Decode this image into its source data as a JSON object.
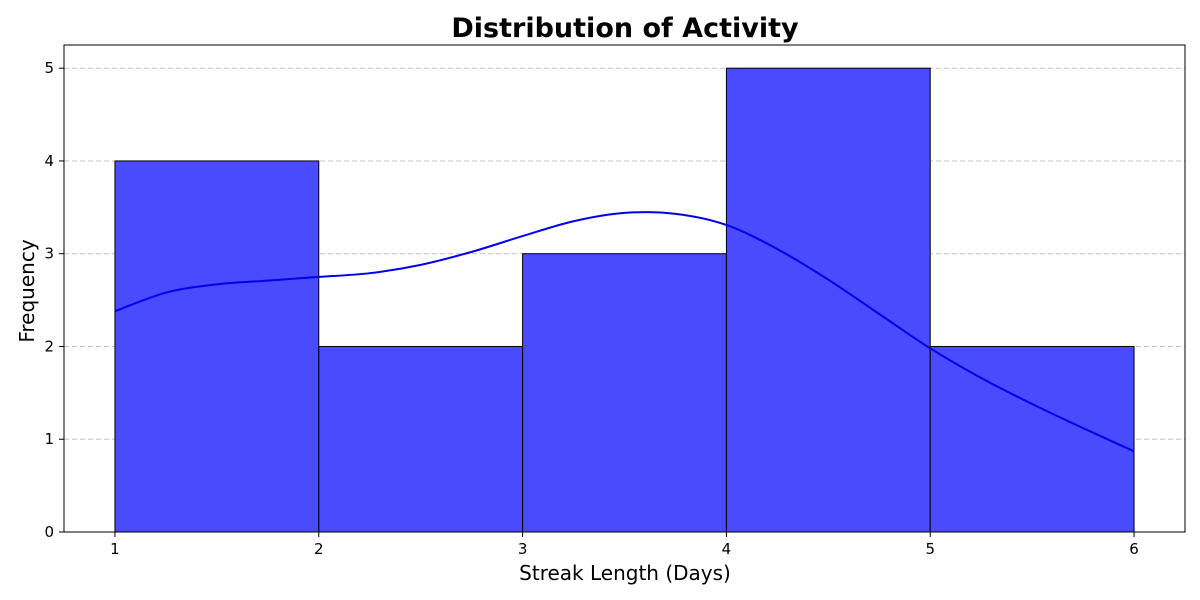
{
  "chart_data": {
    "type": "bar",
    "subtype": "histogram",
    "title": "Distribution of Activity",
    "xlabel": "Streak Length (Days)",
    "ylabel": "Frequency",
    "bins": [
      {
        "start": 1,
        "end": 2,
        "count": 4
      },
      {
        "start": 2,
        "end": 3,
        "count": 2
      },
      {
        "start": 3,
        "end": 4,
        "count": 3
      },
      {
        "start": 4,
        "end": 5,
        "count": 5
      },
      {
        "start": 5,
        "end": 6,
        "count": 2
      }
    ],
    "kde": {
      "x": [
        1.0,
        1.25,
        1.5,
        1.75,
        2.0,
        2.25,
        2.5,
        2.75,
        3.0,
        3.25,
        3.5,
        3.75,
        4.0,
        4.25,
        4.5,
        4.75,
        5.0,
        5.25,
        5.5,
        5.75,
        6.0
      ],
      "y": [
        2.38,
        2.58,
        2.67,
        2.71,
        2.75,
        2.79,
        2.88,
        3.02,
        3.19,
        3.35,
        3.44,
        3.43,
        3.31,
        3.05,
        2.72,
        2.35,
        1.98,
        1.66,
        1.38,
        1.12,
        0.87
      ]
    },
    "xticks": [
      "1",
      "2",
      "3",
      "4",
      "5",
      "6"
    ],
    "yticks": [
      "0",
      "1",
      "2",
      "3",
      "4",
      "5"
    ],
    "xlim": [
      0.75,
      6.25
    ],
    "ylim": [
      0,
      5.25
    ],
    "grid": "y-dashed",
    "bar_color": "#4a4aff",
    "line_color": "#0000ee"
  }
}
